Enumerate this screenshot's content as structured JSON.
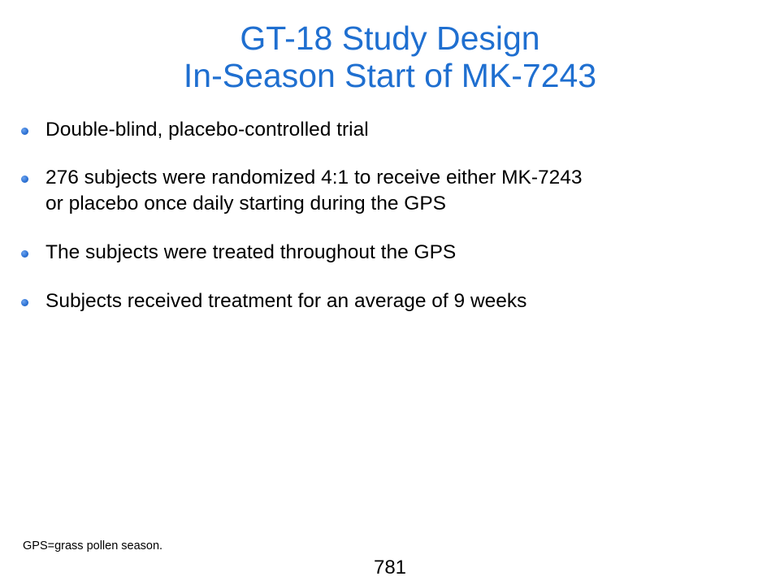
{
  "title": {
    "line1": "GT-18 Study Design",
    "line2": "In-Season Start of MK-7243"
  },
  "bullets": [
    {
      "lines": [
        "Double-blind, placebo-controlled trial"
      ]
    },
    {
      "lines": [
        "276 subjects were randomized 4:1 to receive either MK-7243",
        "or placebo once daily starting during the GPS"
      ]
    },
    {
      "lines": [
        "The subjects were treated throughout the GPS"
      ]
    },
    {
      "lines": [
        "Subjects received treatment for an average of 9 weeks"
      ]
    }
  ],
  "footnote": "GPS=grass pollen season.",
  "page_number": "781",
  "colors": {
    "title": "#1f6fd0",
    "bullet_dot": "#2f74d6",
    "body_text": "#000000",
    "background": "#ffffff"
  },
  "icons": {
    "bullet": "bullet-dot-icon"
  }
}
